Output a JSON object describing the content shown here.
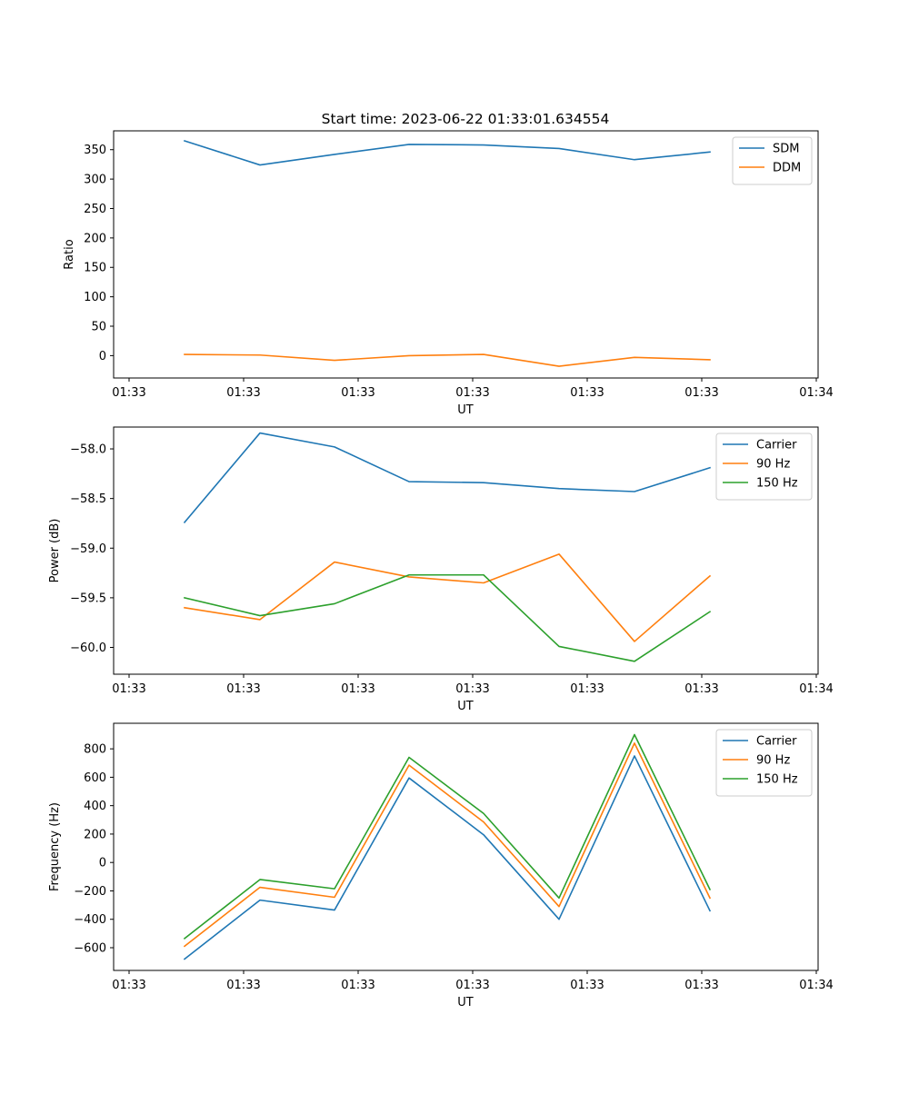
{
  "figure": {
    "title": "Start time: 2023-06-22 01:33:01.634554"
  },
  "chart_data": [
    {
      "type": "line",
      "title": "Start time: 2023-06-22 01:33:01.634554",
      "xlabel": "UT",
      "ylabel": "Ratio",
      "x_tick_labels": [
        "01:33",
        "01:33",
        "01:33",
        "01:33",
        "01:33",
        "01:33",
        "01:34"
      ],
      "y_ticks": [
        0,
        50,
        100,
        150,
        200,
        250,
        300,
        350
      ],
      "ylim": [
        -38,
        382
      ],
      "legend_position": "upper right",
      "series": [
        {
          "name": "SDM",
          "color": "#1f77b4",
          "values": [
            365,
            324,
            342,
            359,
            358,
            352,
            333,
            346
          ]
        },
        {
          "name": "DDM",
          "color": "#ff7f0e",
          "values": [
            2,
            1,
            -8,
            0,
            2,
            -18,
            -3,
            -7
          ]
        }
      ]
    },
    {
      "type": "line",
      "title": "",
      "xlabel": "UT",
      "ylabel": "Power (dB)",
      "x_tick_labels": [
        "01:33",
        "01:33",
        "01:33",
        "01:33",
        "01:33",
        "01:33",
        "01:34"
      ],
      "y_ticks": [
        -60.0,
        -59.5,
        -59.0,
        -58.5,
        -58.0
      ],
      "y_tick_labels": [
        "−60.0",
        "−59.5",
        "−59.0",
        "−58.5",
        "−58.0"
      ],
      "ylim": [
        -60.27,
        -57.78
      ],
      "legend_position": "upper right",
      "series": [
        {
          "name": "Carrier",
          "color": "#1f77b4",
          "values": [
            -58.74,
            -57.84,
            -57.98,
            -58.33,
            -58.34,
            -58.4,
            -58.43,
            -58.19
          ]
        },
        {
          "name": "90 Hz",
          "color": "#ff7f0e",
          "values": [
            -59.6,
            -59.72,
            -59.14,
            -59.29,
            -59.35,
            -59.06,
            -59.94,
            -59.28
          ]
        },
        {
          "name": "150 Hz",
          "color": "#2ca02c",
          "values": [
            -59.5,
            -59.68,
            -59.56,
            -59.27,
            -59.27,
            -59.99,
            -60.14,
            -59.64
          ]
        }
      ]
    },
    {
      "type": "line",
      "title": "",
      "xlabel": "UT",
      "ylabel": "Frequency (Hz)",
      "x_tick_labels": [
        "01:33",
        "01:33",
        "01:33",
        "01:33",
        "01:33",
        "01:33",
        "01:34"
      ],
      "y_ticks": [
        -600,
        -400,
        -200,
        0,
        200,
        400,
        600,
        800
      ],
      "y_tick_labels": [
        "−600",
        "−400",
        "−200",
        "0",
        "200",
        "400",
        "600",
        "800"
      ],
      "ylim": [
        -760,
        980
      ],
      "legend_position": "upper right",
      "series": [
        {
          "name": "Carrier",
          "color": "#1f77b4",
          "values": [
            -680,
            -265,
            -335,
            595,
            195,
            -400,
            750,
            -340
          ]
        },
        {
          "name": "90 Hz",
          "color": "#ff7f0e",
          "values": [
            -590,
            -175,
            -245,
            685,
            285,
            -310,
            840,
            -250
          ]
        },
        {
          "name": "150 Hz",
          "color": "#2ca02c",
          "values": [
            -535,
            -120,
            -185,
            740,
            345,
            -250,
            900,
            -190
          ]
        }
      ]
    }
  ]
}
